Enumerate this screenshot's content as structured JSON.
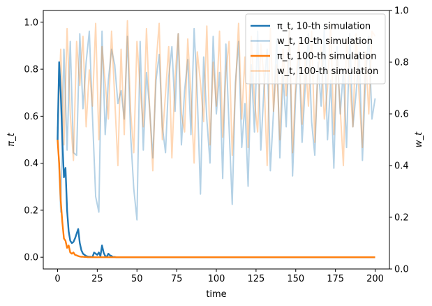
{
  "chart_data": {
    "type": "line",
    "xlabel": "time",
    "ylabel_left": "π_t",
    "ylabel_right": "w_t",
    "xlim": [
      -9,
      209
    ],
    "ylim_left": [
      -0.05,
      1.05
    ],
    "ylim_right": [
      0.0,
      1.0
    ],
    "xticks": [
      0,
      25,
      50,
      75,
      100,
      125,
      150,
      175,
      200
    ],
    "yticks_left": [
      0.0,
      0.2,
      0.4,
      0.6,
      0.8,
      1.0
    ],
    "yticks_right": [
      0.0,
      0.2,
      0.4,
      0.6,
      0.8,
      1.0
    ],
    "legend_position": "top-right",
    "series": [
      {
        "key": "pi10",
        "name": "π_t, 10-th simulation",
        "legend_label": "10-th simulation",
        "axis": "left",
        "color": "#1f77b4",
        "opacity": 1.0,
        "x": [
          0,
          1,
          2,
          3,
          4,
          5,
          6,
          7,
          8,
          9,
          10,
          11,
          12,
          13,
          14,
          15,
          16,
          17,
          18,
          19,
          20,
          21,
          22,
          23,
          24,
          25,
          26,
          27,
          28,
          29,
          30,
          31,
          32,
          33,
          34,
          35,
          36,
          37,
          38,
          39,
          40,
          45,
          50,
          100,
          150,
          200
        ],
        "values": [
          0.5,
          0.83,
          0.7,
          0.5,
          0.34,
          0.38,
          0.2,
          0.11,
          0.07,
          0.06,
          0.065,
          0.08,
          0.1,
          0.12,
          0.06,
          0.03,
          0.015,
          0.01,
          0.005,
          0.003,
          0.002,
          0.002,
          0.001,
          0.02,
          0.015,
          0.01,
          0.02,
          0.005,
          0.05,
          0.02,
          0.005,
          0.002,
          0.015,
          0.008,
          0.005,
          0.001,
          0.001,
          0.0,
          0.0,
          0.0,
          0.0,
          0.0,
          0.0,
          0.0,
          0.0,
          0.0
        ]
      },
      {
        "key": "w10",
        "name": "w_t, 10-th simulation",
        "legend_label": "10-th simulation",
        "axis": "right",
        "color": "#1f77b4",
        "opacity": 0.33,
        "x": [
          0,
          2,
          4,
          6,
          8,
          10,
          12,
          14,
          16,
          18,
          20,
          22,
          24,
          26,
          28,
          30,
          32,
          34,
          36,
          38,
          40,
          42,
          44,
          46,
          48,
          50,
          52,
          54,
          56,
          58,
          60,
          62,
          64,
          66,
          68,
          70,
          72,
          74,
          76,
          78,
          80,
          82,
          84,
          86,
          88,
          90,
          92,
          94,
          96,
          98,
          100,
          102,
          104,
          106,
          108,
          110,
          112,
          114,
          116,
          118,
          120,
          122,
          124,
          126,
          128,
          130,
          132,
          134,
          136,
          138,
          140,
          142,
          144,
          146,
          148,
          150,
          152,
          154,
          156,
          158,
          160,
          162,
          164,
          166,
          168,
          170,
          172,
          174,
          176,
          178,
          180,
          182,
          184,
          186,
          188,
          190,
          192,
          194,
          196,
          198,
          200
        ],
        "values": [
          0.55,
          0.22,
          0.85,
          0.46,
          0.88,
          0.45,
          0.44,
          0.91,
          0.62,
          0.8,
          0.92,
          0.59,
          0.28,
          0.22,
          0.92,
          0.52,
          0.73,
          0.85,
          0.79,
          0.64,
          0.69,
          0.58,
          0.9,
          0.52,
          0.31,
          0.19,
          0.88,
          0.46,
          0.76,
          0.62,
          0.43,
          0.73,
          0.83,
          0.55,
          0.45,
          0.74,
          0.86,
          0.61,
          0.91,
          0.48,
          0.69,
          0.81,
          0.52,
          0.93,
          0.67,
          0.29,
          0.82,
          0.58,
          0.41,
          0.9,
          0.6,
          0.76,
          0.35,
          0.87,
          0.55,
          0.25,
          0.72,
          0.88,
          0.47,
          0.64,
          0.32,
          0.79,
          0.53,
          0.92,
          0.46,
          0.7,
          0.85,
          0.38,
          0.61,
          0.89,
          0.43,
          0.75,
          0.55,
          0.92,
          0.36,
          0.68,
          0.83,
          0.49,
          0.71,
          0.91,
          0.57,
          0.44,
          0.8,
          0.63,
          0.94,
          0.5,
          0.73,
          0.39,
          0.86,
          0.6,
          0.77,
          0.47,
          0.91,
          0.55,
          0.68,
          0.84,
          0.42,
          0.75,
          0.9,
          0.58,
          0.66
        ]
      },
      {
        "key": "pi100",
        "name": "π_t, 100-th simulation",
        "legend_label": "100-th simulation",
        "axis": "left",
        "color": "#ff7f0e",
        "opacity": 1.0,
        "x": [
          0,
          1,
          2,
          3,
          4,
          5,
          6,
          7,
          8,
          9,
          10,
          11,
          12,
          13,
          14,
          15,
          16,
          17,
          18,
          19,
          20,
          22,
          24,
          26,
          28,
          30,
          35,
          40,
          45,
          50,
          100,
          150,
          200
        ],
        "values": [
          0.5,
          0.4,
          0.24,
          0.15,
          0.08,
          0.07,
          0.04,
          0.05,
          0.02,
          0.015,
          0.02,
          0.01,
          0.008,
          0.005,
          0.003,
          0.002,
          0.002,
          0.001,
          0.001,
          0.0,
          0.0,
          0.0,
          0.0,
          0.0,
          0.0,
          0.0,
          0.0,
          0.0,
          0.0,
          0.0,
          0.0,
          0.0,
          0.0
        ]
      },
      {
        "key": "w100",
        "name": "w_t, 100-th simulation",
        "legend_label": "100-th simulation",
        "axis": "right",
        "color": "#ff7f0e",
        "opacity": 0.3,
        "x": [
          0,
          2,
          4,
          6,
          8,
          10,
          12,
          14,
          16,
          18,
          20,
          22,
          24,
          26,
          28,
          30,
          32,
          34,
          36,
          38,
          40,
          42,
          44,
          46,
          48,
          50,
          52,
          54,
          56,
          58,
          60,
          62,
          64,
          66,
          68,
          70,
          72,
          74,
          76,
          78,
          80,
          82,
          84,
          86,
          88,
          90,
          92,
          94,
          96,
          98,
          100,
          102,
          104,
          106,
          108,
          110,
          112,
          114,
          116,
          118,
          120,
          122,
          124,
          126,
          128,
          130,
          132,
          134,
          136,
          138,
          140,
          142,
          144,
          146,
          148,
          150,
          152,
          154,
          156,
          158,
          160,
          162,
          164,
          166,
          168,
          170,
          172,
          174,
          176,
          178,
          180,
          182,
          184,
          186,
          188,
          190,
          192,
          194,
          196,
          198,
          200
        ],
        "values": [
          0.52,
          0.85,
          0.48,
          0.93,
          0.6,
          0.42,
          0.88,
          0.71,
          0.9,
          0.55,
          0.77,
          0.63,
          0.95,
          0.5,
          0.86,
          0.72,
          0.58,
          0.92,
          0.66,
          0.4,
          0.85,
          0.52,
          0.96,
          0.61,
          0.45,
          0.88,
          0.7,
          0.55,
          0.93,
          0.62,
          0.38,
          0.79,
          0.95,
          0.5,
          0.68,
          0.86,
          0.43,
          0.74,
          0.91,
          0.6,
          0.53,
          0.89,
          0.67,
          0.41,
          0.84,
          0.72,
          0.57,
          0.94,
          0.48,
          0.8,
          0.63,
          0.92,
          0.51,
          0.76,
          0.88,
          0.44,
          0.69,
          0.95,
          0.58,
          0.82,
          0.47,
          0.9,
          0.65,
          0.53,
          0.87,
          0.74,
          0.4,
          0.93,
          0.61,
          0.79,
          0.5,
          0.85,
          0.67,
          0.94,
          0.45,
          0.72,
          0.88,
          0.56,
          0.81,
          0.63,
          0.92,
          0.49,
          0.77,
          0.86,
          0.58,
          0.7,
          0.95,
          0.52,
          0.83,
          0.62,
          0.4,
          0.89,
          0.73,
          0.55,
          0.91,
          0.66,
          0.47,
          0.84,
          0.6,
          0.92,
          0.9
        ]
      }
    ]
  }
}
